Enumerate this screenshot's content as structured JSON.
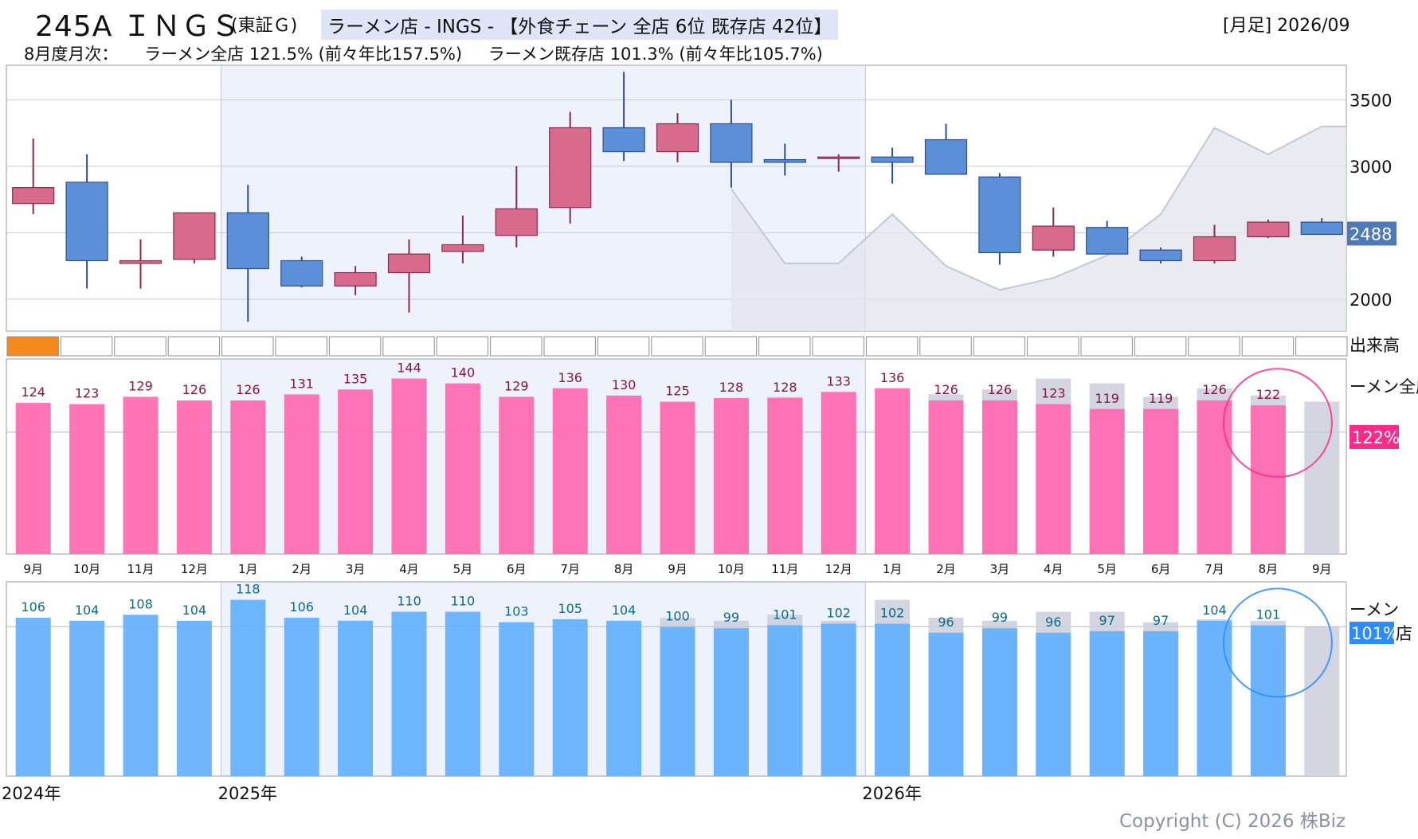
{
  "header": {
    "code_name": "245A ＩＮＧＳ",
    "market": "(東証Ｇ)",
    "headline": "ラーメン店 - INGS - 【外食チェーン 全店 6位 既存店 42位】",
    "period": "[月足] 2026/09",
    "summary_label": "8月度月次：",
    "summary_all": "ラーメン全店 121.5% (前々年比157.5%)",
    "summary_existing": "ラーメン既存店 101.3% (前々年比105.7%)"
  },
  "copyright": "Copyright (C) 2026 株Biz",
  "colors": {
    "up_candle": "#d86a8c",
    "down_candle": "#5b8fd8",
    "all_bar": "#ff6ab0",
    "existing_bar": "#64b0ff",
    "prior_bar": "#c8cad8",
    "all_badge": "#ff2a8a",
    "existing_badge": "#2a8cff",
    "volume_highlight": "#f58a1f"
  },
  "chart_data": [
    {
      "type": "candlestick",
      "title": "",
      "ylim": [
        1760,
        3760
      ],
      "yticks": [
        2000,
        2500,
        3000,
        3500
      ],
      "ytick_labels": [
        "2000",
        "",
        "3000",
        "3500"
      ],
      "current_price_label": "2488",
      "categories": [
        "9月",
        "10月",
        "11月",
        "12月",
        "1月",
        "2月",
        "3月",
        "4月",
        "5月",
        "6月",
        "7月",
        "8月",
        "9月",
        "10月",
        "11月",
        "12月",
        "1月",
        "2月",
        "3月",
        "4月",
        "5月",
        "6月",
        "7月",
        "8月",
        "9月"
      ],
      "ohlc": [
        [
          2720,
          3210,
          2640,
          2840
        ],
        [
          2880,
          3090,
          2080,
          2290
        ],
        [
          2270,
          2450,
          2080,
          2290
        ],
        [
          2300,
          2650,
          2270,
          2650
        ],
        [
          2650,
          2860,
          1830,
          2230
        ],
        [
          2290,
          2320,
          2090,
          2100
        ],
        [
          2100,
          2250,
          2030,
          2200
        ],
        [
          2200,
          2450,
          1900,
          2340
        ],
        [
          2360,
          2630,
          2270,
          2410
        ],
        [
          2480,
          3000,
          2390,
          2680
        ],
        [
          2690,
          3410,
          2570,
          3290
        ],
        [
          3290,
          3710,
          3040,
          3110
        ],
        [
          3110,
          3400,
          3030,
          3320
        ],
        [
          3320,
          3500,
          2840,
          3030
        ],
        [
          3050,
          3170,
          2930,
          3030
        ],
        [
          3060,
          3090,
          2960,
          3070
        ],
        [
          3070,
          3140,
          2870,
          3030
        ],
        [
          3200,
          3320,
          2950,
          2940
        ],
        [
          2920,
          2950,
          2260,
          2350
        ],
        [
          2370,
          2690,
          2320,
          2550
        ],
        [
          2540,
          2590,
          2340,
          2340
        ],
        [
          2370,
          2390,
          2270,
          2290
        ],
        [
          2290,
          2560,
          2270,
          2470
        ],
        [
          2470,
          2600,
          2460,
          2580
        ],
        [
          2580,
          2610,
          2490,
          2488
        ]
      ],
      "comparison_line": {
        "x_index_start": 13,
        "values": [
          2830,
          2270,
          2270,
          2640,
          2250,
          2070,
          2160,
          2330,
          2640,
          3290,
          3090,
          3300
        ]
      }
    },
    {
      "type": "bar",
      "title": "ラーメン全店",
      "legend_label": "ーメン全店",
      "badge": "122%",
      "volume_label": "出来高",
      "ylim": [
        0,
        160
      ],
      "categories": [
        "9月",
        "10月",
        "11月",
        "12月",
        "1月",
        "2月",
        "3月",
        "4月",
        "5月",
        "6月",
        "7月",
        "8月",
        "9月",
        "10月",
        "11月",
        "12月",
        "1月",
        "2月",
        "3月",
        "4月",
        "5月",
        "6月",
        "7月",
        "8月",
        "9月"
      ],
      "values": [
        124,
        123,
        129,
        126,
        126,
        131,
        135,
        144,
        140,
        129,
        136,
        130,
        125,
        128,
        128,
        133,
        136,
        126,
        126,
        123,
        119,
        119,
        126,
        122,
        null
      ],
      "prior_year": [
        null,
        null,
        null,
        null,
        null,
        null,
        null,
        null,
        null,
        null,
        null,
        null,
        124,
        123,
        129,
        126,
        126,
        131,
        135,
        144,
        140,
        129,
        136,
        130,
        125
      ],
      "highlight_index": 23
    },
    {
      "type": "bar",
      "title": "ラーメン既存店",
      "legend_label": "ーメン",
      "legend_label_tail": "店",
      "badge": "101%",
      "ylim": [
        0,
        130
      ],
      "values": [
        106,
        104,
        108,
        104,
        118,
        106,
        104,
        110,
        110,
        103,
        105,
        104,
        100,
        99,
        101,
        102,
        102,
        96,
        99,
        96,
        97,
        97,
        104,
        101,
        null
      ],
      "prior_year": [
        null,
        null,
        null,
        null,
        null,
        null,
        null,
        null,
        null,
        null,
        null,
        null,
        106,
        104,
        108,
        104,
        118,
        106,
        104,
        110,
        110,
        103,
        105,
        104,
        100
      ],
      "year_labels": [
        {
          "index": 0,
          "label": "2024年"
        },
        {
          "index": 4,
          "label": "2025年"
        },
        {
          "index": 16,
          "label": "2026年"
        }
      ],
      "highlight_index": 23
    }
  ]
}
